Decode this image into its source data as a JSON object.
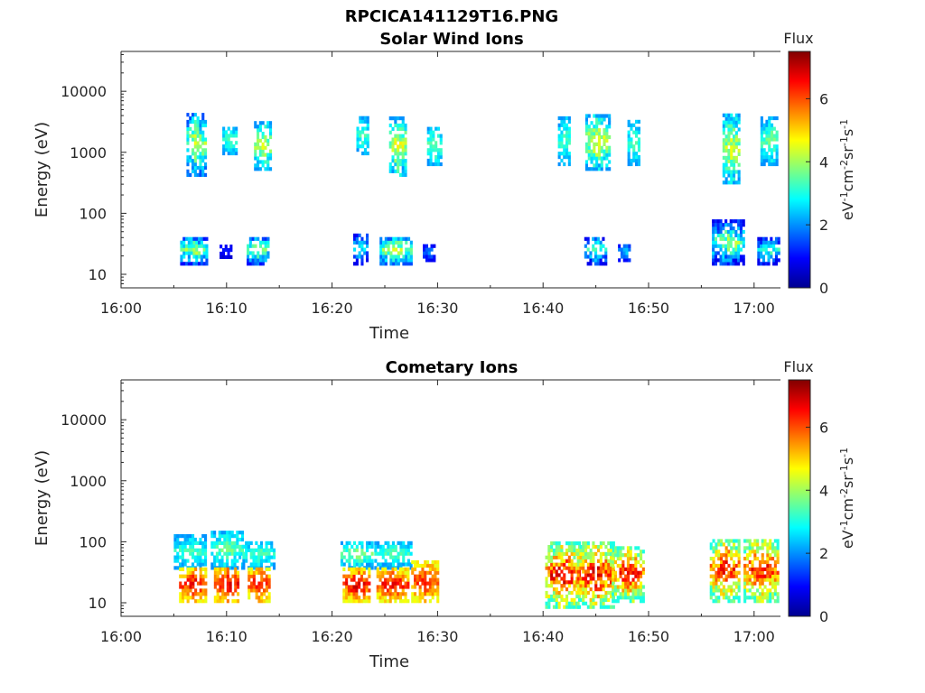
{
  "figure": {
    "title": "RPCICA141129T16.PNG"
  },
  "chart_data": [
    {
      "type": "heatmap",
      "title": "Solar Wind Ions",
      "xlabel": "Time",
      "ylabel": "Energy (eV)",
      "x_ticks": [
        "16:00",
        "16:10",
        "16:20",
        "16:30",
        "16:40",
        "16:50",
        "17:00"
      ],
      "x_range_minutes": [
        0,
        62.5
      ],
      "y_ticks": [
        "10",
        "100",
        "1000",
        "10000"
      ],
      "y_range": [
        6,
        45000
      ],
      "y_scale": "log",
      "colorbar": {
        "label_top": "Flux",
        "unit": "eV-1cm-2sr-1s-1",
        "ticks": [
          "0",
          "2",
          "4",
          "6"
        ],
        "range": [
          0,
          7.5
        ],
        "colormap": "jet"
      },
      "clusters": [
        {
          "t": [
            5.6,
            8.1
          ],
          "e": [
            14,
            40
          ],
          "flux": [
            1.0,
            4.3
          ]
        },
        {
          "t": [
            9.1,
            10.4
          ],
          "e": [
            18,
            30
          ],
          "flux": [
            0.6,
            1.2
          ]
        },
        {
          "t": [
            11.9,
            14.0
          ],
          "e": [
            14,
            40
          ],
          "flux": [
            1.0,
            4.3
          ]
        },
        {
          "t": [
            6.2,
            7.9
          ],
          "e": [
            400,
            4000
          ],
          "flux": [
            1.5,
            4.6
          ]
        },
        {
          "t": [
            9.6,
            11.0
          ],
          "e": [
            900,
            2500
          ],
          "flux": [
            2.0,
            3.5
          ]
        },
        {
          "t": [
            12.6,
            14.2
          ],
          "e": [
            500,
            3000
          ],
          "flux": [
            2.0,
            4.6
          ]
        },
        {
          "t": [
            22.0,
            23.3
          ],
          "e": [
            14,
            45
          ],
          "flux": [
            0.8,
            3.0
          ]
        },
        {
          "t": [
            24.5,
            27.5
          ],
          "e": [
            14,
            40
          ],
          "flux": [
            1.5,
            4.5
          ]
        },
        {
          "t": [
            28.6,
            29.6
          ],
          "e": [
            16,
            30
          ],
          "flux": [
            0.8,
            2.0
          ]
        },
        {
          "t": [
            22.3,
            23.4
          ],
          "e": [
            900,
            3500
          ],
          "flux": [
            2.0,
            3.5
          ]
        },
        {
          "t": [
            25.4,
            27.0
          ],
          "e": [
            400,
            3500
          ],
          "flux": [
            2.0,
            4.8
          ]
        },
        {
          "t": [
            29.0,
            30.3
          ],
          "e": [
            600,
            2500
          ],
          "flux": [
            2.0,
            3.8
          ]
        },
        {
          "t": [
            43.9,
            45.9
          ],
          "e": [
            14,
            40
          ],
          "flux": [
            0.8,
            3.5
          ]
        },
        {
          "t": [
            47.1,
            48.2
          ],
          "e": [
            16,
            30
          ],
          "flux": [
            1.0,
            2.5
          ]
        },
        {
          "t": [
            41.4,
            42.6
          ],
          "e": [
            600,
            3500
          ],
          "flux": [
            2.0,
            3.5
          ]
        },
        {
          "t": [
            44.0,
            46.2
          ],
          "e": [
            500,
            4000
          ],
          "flux": [
            2.0,
            4.8
          ]
        },
        {
          "t": [
            48.0,
            49.2
          ],
          "e": [
            600,
            3000
          ],
          "flux": [
            2.0,
            3.5
          ]
        },
        {
          "t": [
            56.0,
            58.9
          ],
          "e": [
            14,
            70
          ],
          "flux": [
            0.8,
            4.3
          ]
        },
        {
          "t": [
            57.0,
            58.6
          ],
          "e": [
            300,
            4000
          ],
          "flux": [
            2.0,
            4.6
          ]
        },
        {
          "t": [
            60.3,
            62.3
          ],
          "e": [
            14,
            40
          ],
          "flux": [
            0.8,
            3.5
          ]
        },
        {
          "t": [
            60.6,
            62.5
          ],
          "e": [
            600,
            3500
          ],
          "flux": [
            2.0,
            3.8
          ]
        }
      ]
    },
    {
      "type": "heatmap",
      "title": "Cometary Ions",
      "xlabel": "Time",
      "ylabel": "Energy (eV)",
      "x_ticks": [
        "16:00",
        "16:10",
        "16:20",
        "16:30",
        "16:40",
        "16:50",
        "17:00"
      ],
      "x_range_minutes": [
        0,
        62.5
      ],
      "y_ticks": [
        "10",
        "100",
        "1000",
        "10000"
      ],
      "y_range": [
        6,
        45000
      ],
      "y_scale": "log",
      "colorbar": {
        "label_top": "Flux",
        "unit": "eV-1cm-2sr-1s-1",
        "ticks": [
          "0",
          "2",
          "4",
          "6"
        ],
        "range": [
          0,
          7.5
        ],
        "colormap": "jet"
      },
      "clusters": [
        {
          "t": [
            5.0,
            8.0
          ],
          "e": [
            35,
            120
          ],
          "flux": [
            2.0,
            3.5
          ]
        },
        {
          "t": [
            5.5,
            8.0
          ],
          "e": [
            10,
            35
          ],
          "flux": [
            4.5,
            6.8
          ]
        },
        {
          "t": [
            8.5,
            11.5
          ],
          "e": [
            35,
            150
          ],
          "flux": [
            2.0,
            3.8
          ]
        },
        {
          "t": [
            8.8,
            11.2
          ],
          "e": [
            10,
            35
          ],
          "flux": [
            4.8,
            7.0
          ]
        },
        {
          "t": [
            11.5,
            14.5
          ],
          "e": [
            35,
            100
          ],
          "flux": [
            2.0,
            3.5
          ]
        },
        {
          "t": [
            12.0,
            14.0
          ],
          "e": [
            10,
            35
          ],
          "flux": [
            4.5,
            6.8
          ]
        },
        {
          "t": [
            20.8,
            23.8
          ],
          "e": [
            35,
            100
          ],
          "flux": [
            2.0,
            4.0
          ]
        },
        {
          "t": [
            21.0,
            23.6
          ],
          "e": [
            10,
            35
          ],
          "flux": [
            4.5,
            7.0
          ]
        },
        {
          "t": [
            24.0,
            27.5
          ],
          "e": [
            35,
            100
          ],
          "flux": [
            2.0,
            3.5
          ]
        },
        {
          "t": [
            24.2,
            27.2
          ],
          "e": [
            10,
            35
          ],
          "flux": [
            4.5,
            6.8
          ]
        },
        {
          "t": [
            27.5,
            30.0
          ],
          "e": [
            10,
            45
          ],
          "flux": [
            4.5,
            6.5
          ]
        },
        {
          "t": [
            40.2,
            43.5
          ],
          "e": [
            8,
            90
          ],
          "flux": [
            3.0,
            7.0
          ]
        },
        {
          "t": [
            43.2,
            46.8
          ],
          "e": [
            8,
            90
          ],
          "flux": [
            3.0,
            7.0
          ]
        },
        {
          "t": [
            46.5,
            49.6
          ],
          "e": [
            10,
            80
          ],
          "flux": [
            3.0,
            6.8
          ]
        },
        {
          "t": [
            55.8,
            58.6
          ],
          "e": [
            10,
            110
          ],
          "flux": [
            3.0,
            6.8
          ]
        },
        {
          "t": [
            59.0,
            62.2
          ],
          "e": [
            10,
            110
          ],
          "flux": [
            3.0,
            6.8
          ]
        }
      ]
    }
  ]
}
